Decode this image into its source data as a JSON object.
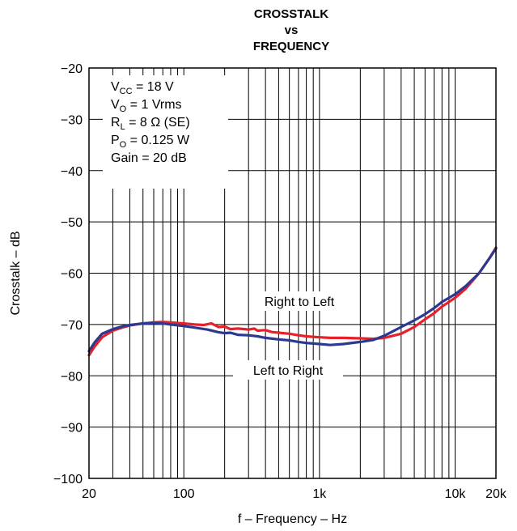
{
  "chart_data": {
    "type": "line",
    "title": [
      "CROSSTALK",
      "vs",
      "FREQUENCY"
    ],
    "xlabel": "f – Frequency – Hz",
    "ylabel": "Crosstalk – dB",
    "x_scale": "log",
    "xlim": [
      20,
      20000
    ],
    "ylim": [
      -100,
      -20
    ],
    "grid": true,
    "x_ticks": [
      {
        "value": 20,
        "label": "20"
      },
      {
        "value": 100,
        "label": "100"
      },
      {
        "value": 1000,
        "label": "1k"
      },
      {
        "value": 10000,
        "label": "10k"
      },
      {
        "value": 20000,
        "label": "20k"
      }
    ],
    "y_ticks": [
      {
        "value": -20,
        "label": "−20"
      },
      {
        "value": -30,
        "label": "−30"
      },
      {
        "value": -40,
        "label": "−40"
      },
      {
        "value": -50,
        "label": "−50"
      },
      {
        "value": -60,
        "label": "−60"
      },
      {
        "value": -70,
        "label": "−70"
      },
      {
        "value": -80,
        "label": "−80"
      },
      {
        "value": -90,
        "label": "−90"
      },
      {
        "value": -100,
        "label": "−100"
      }
    ],
    "conditions": [
      {
        "base": "V",
        "sub": "CC",
        "rest": " = 18 V"
      },
      {
        "base": "V",
        "sub": "O",
        "rest": " = 1 Vrms"
      },
      {
        "base": "R",
        "sub": "L",
        "rest": " = 8 Ω (SE)"
      },
      {
        "base": "P",
        "sub": "O",
        "rest": " = 0.125 W"
      },
      {
        "base": "Gain = 20 dB",
        "sub": "",
        "rest": ""
      }
    ],
    "series": [
      {
        "name": "Right to Left",
        "color": "#e8202a",
        "points": [
          [
            20,
            -76
          ],
          [
            22,
            -74.3
          ],
          [
            25,
            -72.5
          ],
          [
            30,
            -71.2
          ],
          [
            35,
            -70.6
          ],
          [
            40,
            -70.2
          ],
          [
            50,
            -69.8
          ],
          [
            60,
            -69.6
          ],
          [
            70,
            -69.5
          ],
          [
            80,
            -69.6
          ],
          [
            100,
            -69.8
          ],
          [
            120,
            -70
          ],
          [
            140,
            -70.1
          ],
          [
            160,
            -69.8
          ],
          [
            180,
            -70.5
          ],
          [
            200,
            -70.4
          ],
          [
            220,
            -70.9
          ],
          [
            250,
            -70.8
          ],
          [
            280,
            -70.9
          ],
          [
            300,
            -71
          ],
          [
            330,
            -70.8
          ],
          [
            350,
            -71.2
          ],
          [
            400,
            -71.1
          ],
          [
            450,
            -71.5
          ],
          [
            500,
            -71.6
          ],
          [
            600,
            -71.8
          ],
          [
            700,
            -72.1
          ],
          [
            800,
            -72.3
          ],
          [
            1000,
            -72.5
          ],
          [
            1200,
            -72.6
          ],
          [
            1500,
            -72.6
          ],
          [
            2000,
            -72.7
          ],
          [
            2500,
            -72.8
          ],
          [
            3000,
            -72.6
          ],
          [
            4000,
            -71.8
          ],
          [
            5000,
            -70.5
          ],
          [
            6000,
            -69
          ],
          [
            7000,
            -67.8
          ],
          [
            8000,
            -66.5
          ],
          [
            10000,
            -64.8
          ],
          [
            12000,
            -63
          ],
          [
            15000,
            -60
          ],
          [
            18000,
            -57
          ],
          [
            20000,
            -55
          ]
        ]
      },
      {
        "name": "Left to Right",
        "color": "#2b3990",
        "points": [
          [
            20,
            -75.2
          ],
          [
            22,
            -73.5
          ],
          [
            25,
            -71.8
          ],
          [
            30,
            -70.9
          ],
          [
            35,
            -70.4
          ],
          [
            40,
            -70.1
          ],
          [
            50,
            -69.8
          ],
          [
            60,
            -69.7
          ],
          [
            70,
            -69.8
          ],
          [
            80,
            -70
          ],
          [
            100,
            -70.3
          ],
          [
            120,
            -70.6
          ],
          [
            150,
            -71
          ],
          [
            180,
            -71.5
          ],
          [
            200,
            -71.7
          ],
          [
            220,
            -71.6
          ],
          [
            250,
            -72
          ],
          [
            300,
            -72.1
          ],
          [
            350,
            -72.3
          ],
          [
            400,
            -72.6
          ],
          [
            500,
            -72.9
          ],
          [
            600,
            -73.1
          ],
          [
            700,
            -73.4
          ],
          [
            800,
            -73.6
          ],
          [
            1000,
            -73.8
          ],
          [
            1200,
            -74
          ],
          [
            1500,
            -73.8
          ],
          [
            2000,
            -73.4
          ],
          [
            2500,
            -73
          ],
          [
            3000,
            -72.2
          ],
          [
            3500,
            -71.3
          ],
          [
            4000,
            -70.5
          ],
          [
            5000,
            -69.2
          ],
          [
            6000,
            -68
          ],
          [
            7000,
            -66.8
          ],
          [
            8000,
            -65.6
          ],
          [
            10000,
            -64.1
          ],
          [
            12000,
            -62.5
          ],
          [
            15000,
            -60
          ],
          [
            18000,
            -57
          ],
          [
            20000,
            -55.2
          ]
        ]
      }
    ]
  }
}
